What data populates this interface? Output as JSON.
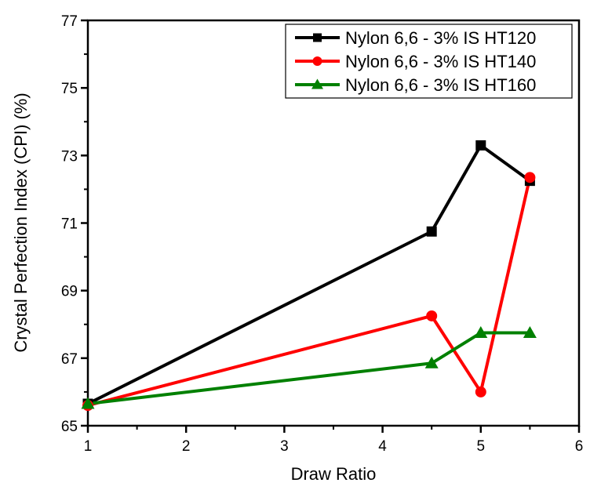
{
  "chart_data": {
    "type": "line",
    "title": "",
    "xlabel": "Draw Ratio",
    "ylabel": "Crystal Perfection Index (CPI) (%)",
    "xlim": [
      1,
      6
    ],
    "ylim": [
      65,
      77
    ],
    "xticks": [
      1,
      2,
      3,
      4,
      5,
      6
    ],
    "xminor": [
      1.5,
      2.5,
      3.5,
      4.5,
      5.5
    ],
    "yticks": [
      65,
      67,
      69,
      71,
      73,
      75,
      77
    ],
    "yminor": [
      66,
      68,
      70,
      72,
      74,
      76
    ],
    "grid": false,
    "legend_position": "upper right",
    "x": [
      1,
      4.5,
      5,
      5.5
    ],
    "series": [
      {
        "name": "Nylon 6,6 - 3% IS HT120",
        "color": "#000000",
        "marker": "square",
        "values": [
          65.65,
          70.75,
          73.3,
          72.25
        ]
      },
      {
        "name": "Nylon 6,6 - 3% IS HT140",
        "color": "#ff0000",
        "marker": "circle",
        "values": [
          65.6,
          68.25,
          66.0,
          72.35
        ]
      },
      {
        "name": "Nylon 6,6 - 3% IS HT160",
        "color": "#008000",
        "marker": "triangle",
        "values": [
          65.65,
          66.85,
          67.75,
          67.75
        ]
      }
    ]
  }
}
